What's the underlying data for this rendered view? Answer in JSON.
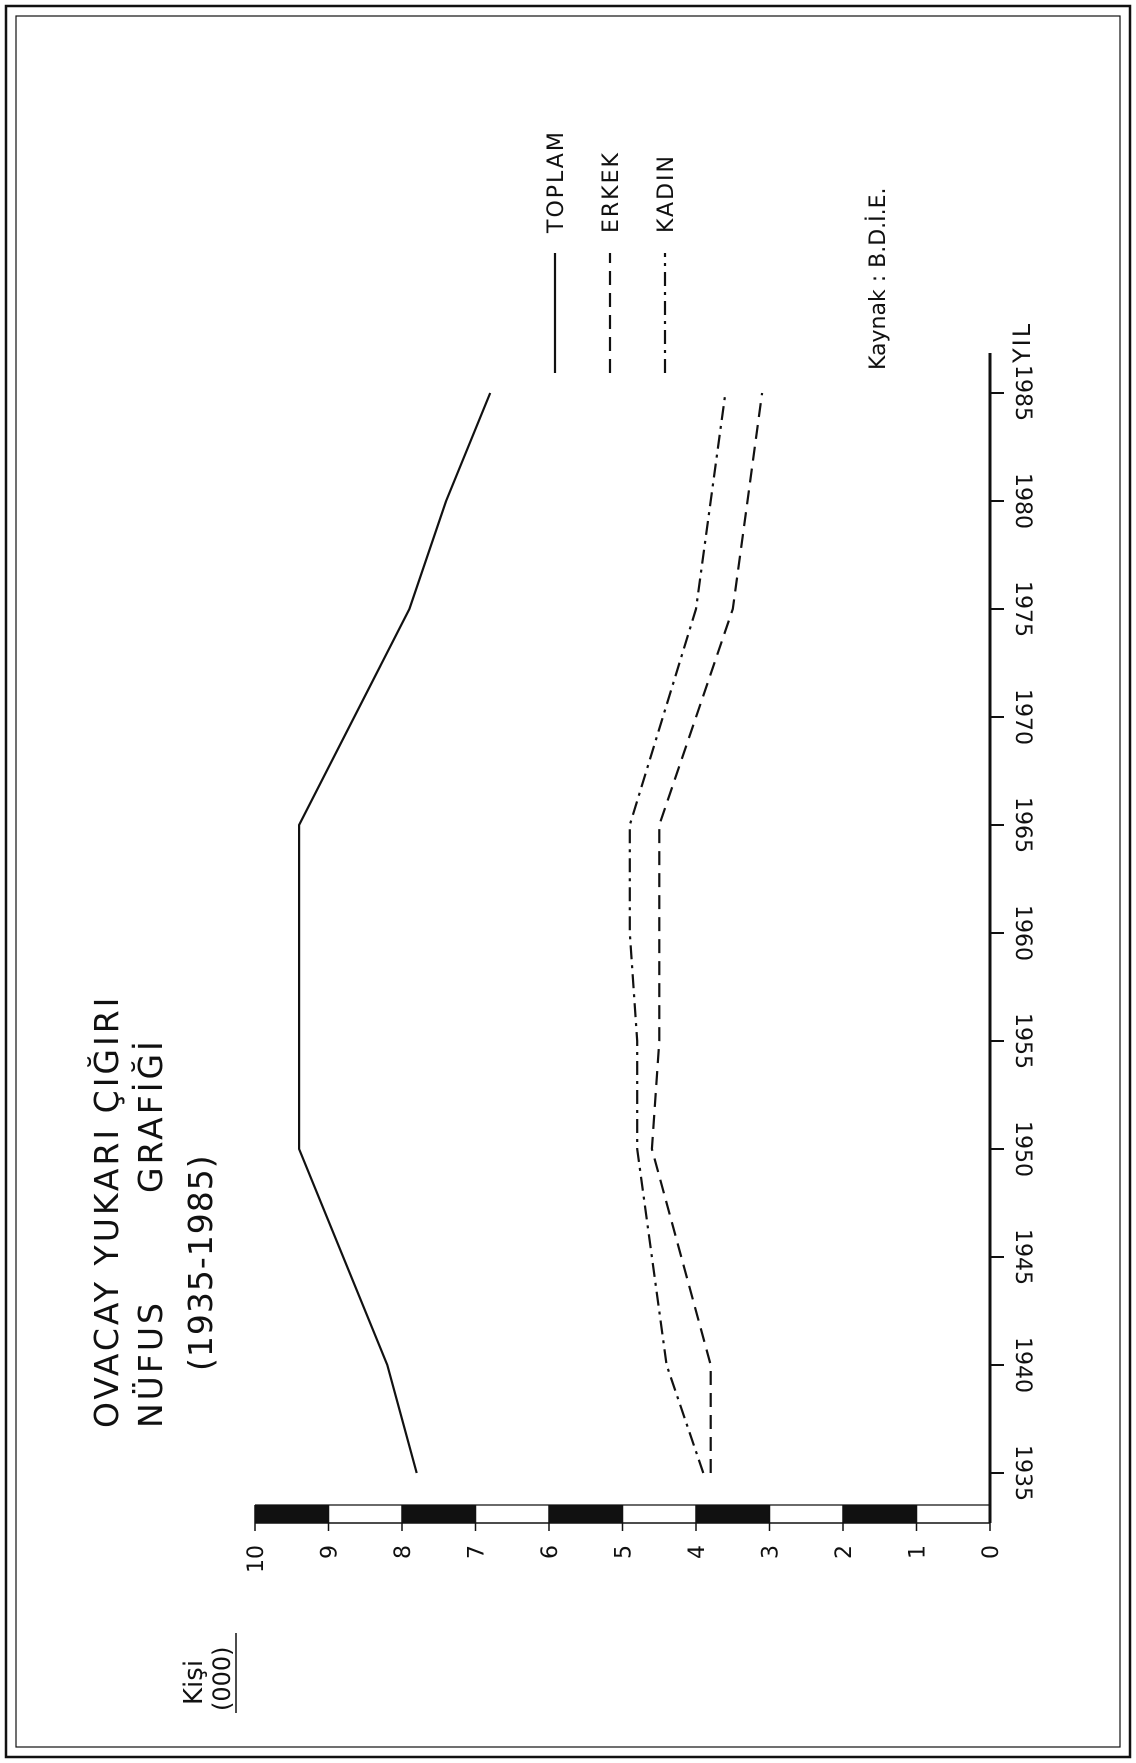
{
  "chart_data": {
    "type": "line",
    "title": "OVACAY YUKARI ÇIĞIRI",
    "subtitle_1": "NÜFUS",
    "subtitle_2": "GRAFİĞİ",
    "subtitle_3": "(1935-1985)",
    "xlabel": "YIL",
    "ylabel_1": "Kişi",
    "ylabel_2": "(000)",
    "source": "Kaynak : B.D.İ.E.",
    "x": [
      1935,
      1940,
      1950,
      1955,
      1960,
      1965,
      1975,
      1980,
      1985
    ],
    "x_ticks": [
      1935,
      1940,
      1945,
      1950,
      1955,
      1960,
      1965,
      1970,
      1975,
      1980,
      1985
    ],
    "y_ticks": [
      0,
      1,
      2,
      3,
      4,
      5,
      6,
      7,
      8,
      9,
      10
    ],
    "xlim": [
      1935,
      1985
    ],
    "ylim": [
      0,
      10
    ],
    "grid": false,
    "legend_placement": "top-right",
    "series": [
      {
        "name": "TOPLAM",
        "style": "solid",
        "values": [
          7.8,
          8.2,
          9.4,
          9.4,
          9.4,
          9.4,
          7.9,
          7.4,
          6.8
        ]
      },
      {
        "name": "ERKEK",
        "style": "dashed",
        "values": [
          3.8,
          3.8,
          4.6,
          4.5,
          4.5,
          4.5,
          3.5,
          3.3,
          3.1
        ]
      },
      {
        "name": "KADIN",
        "style": "dashdot",
        "values": [
          3.9,
          4.4,
          4.8,
          4.8,
          4.9,
          4.9,
          4.0,
          3.8,
          3.6
        ]
      }
    ]
  }
}
